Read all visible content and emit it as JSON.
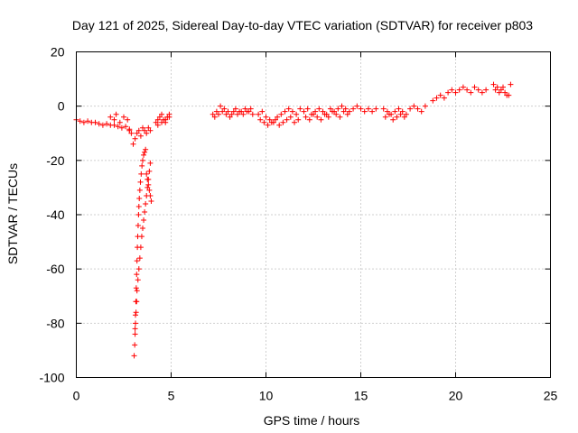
{
  "chart_data": {
    "type": "scatter",
    "title": "Day 121 of 2025, Sidereal Day-to-day VTEC variation (SDTVAR) for receiver p803",
    "xlabel": "GPS time / hours",
    "ylabel": "SDTVAR / TECUs",
    "xlim": [
      0,
      25
    ],
    "ylim": [
      -100,
      20
    ],
    "xticks": [
      0,
      5,
      10,
      15,
      20,
      25
    ],
    "yticks": [
      -100,
      -80,
      -60,
      -40,
      -20,
      0,
      20
    ],
    "grid": true,
    "marker": "+",
    "color": "#ff0000",
    "series": [
      {
        "name": "SDTVAR",
        "x": [
          0.0,
          0.2,
          0.4,
          0.6,
          0.8,
          1.0,
          1.2,
          1.4,
          1.6,
          1.8,
          2.0,
          2.2,
          2.4,
          2.6,
          2.8,
          1.8,
          2.0,
          2.1,
          2.3,
          2.5,
          2.7,
          2.8,
          2.9,
          3.0,
          3.1,
          3.2,
          3.3,
          3.4,
          3.5,
          3.6,
          3.7,
          3.8,
          3.9,
          3.05,
          3.08,
          3.1,
          3.12,
          3.15,
          3.18,
          3.2,
          3.25,
          3.3,
          3.35,
          3.4,
          3.45,
          3.5,
          3.55,
          3.6,
          3.65,
          3.7,
          3.75,
          3.8,
          3.85,
          3.9,
          3.1,
          3.12,
          3.14,
          3.16,
          3.18,
          3.2,
          3.22,
          3.24,
          3.26,
          3.28,
          3.3,
          3.32,
          3.35,
          3.38,
          3.42,
          3.46,
          3.5,
          3.55,
          3.6,
          3.65,
          3.7,
          3.75,
          3.8,
          3.85,
          3.9,
          3.95,
          4.2,
          4.3,
          4.4,
          4.5,
          4.6,
          4.7,
          4.8,
          4.9,
          4.3,
          4.5,
          4.7,
          4.9,
          7.2,
          7.4,
          7.6,
          7.8,
          8.0,
          8.2,
          8.4,
          8.6,
          8.8,
          9.0,
          9.2,
          7.3,
          7.5,
          7.7,
          7.9,
          8.1,
          8.3,
          8.5,
          8.7,
          8.9,
          9.1,
          9.3,
          9.6,
          9.8,
          10.0,
          10.2,
          10.4,
          10.6,
          10.8,
          11.0,
          11.2,
          11.4,
          11.6,
          11.8,
          9.7,
          9.9,
          10.1,
          10.3,
          10.5,
          10.7,
          10.9,
          11.1,
          11.3,
          11.5,
          11.7,
          12.0,
          12.2,
          12.4,
          12.6,
          12.8,
          13.0,
          13.2,
          13.4,
          13.6,
          13.8,
          14.0,
          14.2,
          14.4,
          14.6,
          14.8,
          15.0,
          15.2,
          15.4,
          15.6,
          15.8,
          12.1,
          12.3,
          12.5,
          12.7,
          12.9,
          13.1,
          13.3,
          13.5,
          13.7,
          13.9,
          14.1,
          14.3,
          16.2,
          16.4,
          16.6,
          16.8,
          17.0,
          17.2,
          17.4,
          17.6,
          17.8,
          18.0,
          18.2,
          18.4,
          16.3,
          16.5,
          16.7,
          16.9,
          17.1,
          17.3,
          18.8,
          19.0,
          19.2,
          19.4,
          19.6,
          19.8,
          20.0,
          20.2,
          20.4,
          20.6,
          20.8,
          21.0,
          21.2,
          21.4,
          21.6,
          22.0,
          22.2,
          22.4,
          22.6,
          22.8,
          22.1,
          22.3,
          22.5,
          22.7,
          22.9
        ],
        "y": [
          -5,
          -5.5,
          -6,
          -5.5,
          -6,
          -6,
          -6.5,
          -7,
          -6.5,
          -7,
          -7,
          -7.5,
          -8,
          -7.5,
          -8.5,
          -4,
          -5,
          -3,
          -6,
          -4,
          -5,
          -9,
          -10,
          -14,
          -12,
          -10,
          -9,
          -11,
          -8,
          -9,
          -10,
          -8,
          -9,
          -92,
          -88,
          -84,
          -80,
          -76,
          -72,
          -68,
          -64,
          -60,
          -56,
          -52,
          -48,
          -45,
          -42,
          -39,
          -36,
          -33,
          -30,
          -27,
          -24,
          -21,
          -82,
          -77,
          -72,
          -67,
          -62,
          -57,
          -52,
          -48,
          -44,
          -40,
          -37,
          -34,
          -31,
          -28,
          -25,
          -22,
          -20,
          -18,
          -17,
          -16,
          -25,
          -27,
          -29,
          -31,
          -33,
          -35,
          -6,
          -5,
          -4,
          -3,
          -5,
          -6,
          -4,
          -3,
          -7,
          -6,
          -5,
          -4,
          -3,
          -2,
          0,
          -1,
          -2,
          -3,
          -1,
          -2,
          -3,
          -2,
          -1,
          -4,
          -3,
          -2,
          -3,
          -4,
          -2,
          -3,
          -2,
          -1,
          -2,
          -3,
          -3,
          -2,
          -4,
          -5,
          -6,
          -4,
          -3,
          -2,
          -1,
          -2,
          -3,
          -1,
          -5,
          -6,
          -7,
          -6,
          -5,
          -7,
          -6,
          -5,
          -4,
          -6,
          -5,
          -2,
          -1,
          -3,
          -2,
          -1,
          -2,
          -3,
          -1,
          -2,
          -1,
          0,
          -1,
          -2,
          -1,
          0,
          -1,
          -2,
          -1,
          -2,
          -1,
          -4,
          -5,
          -3,
          -4,
          -5,
          -3,
          -4,
          -2,
          -3,
          -4,
          -2,
          -3,
          -1,
          -2,
          -3,
          -2,
          -1,
          -2,
          -3,
          -1,
          0,
          -1,
          -2,
          0,
          -4,
          -3,
          -5,
          -4,
          -3,
          -4,
          2,
          3,
          4,
          3,
          5,
          6,
          5,
          6,
          7,
          6,
          5,
          7,
          6,
          5,
          6,
          8,
          7,
          6,
          5,
          4,
          6,
          5,
          7,
          4,
          8
        ]
      }
    ]
  }
}
